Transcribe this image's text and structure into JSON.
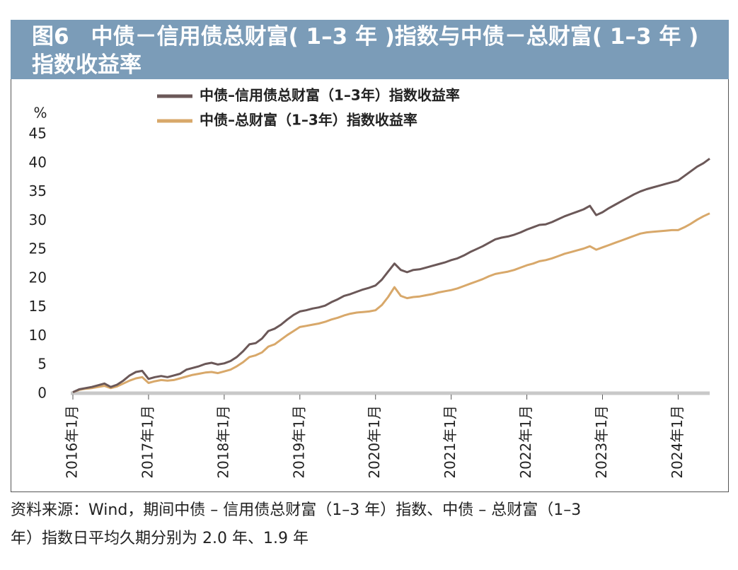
{
  "chart_data": {
    "type": "line",
    "title": "图6　中债－信用债总财富( 1–3 年 )指数与中债－总财富( 1–3 年 ) 指数收益率",
    "y_label": "%",
    "source": [
      "资料来源：Wind，期间中债 – 信用债总财富（1–3 年）指数、中债 – 总财富（1–3",
      "年）指数日平均久期分别为 2.0 年、1.9 年"
    ],
    "legend": "top",
    "grid": false,
    "ylim": [
      0,
      45
    ],
    "yticks": [
      0,
      5,
      10,
      15,
      20,
      25,
      30,
      35,
      40,
      45
    ],
    "categories": [
      "2016年1月",
      null,
      null,
      null,
      null,
      null,
      null,
      null,
      null,
      null,
      null,
      null,
      "2017年1月",
      null,
      null,
      null,
      null,
      null,
      null,
      null,
      null,
      null,
      null,
      null,
      "2018年1月",
      null,
      null,
      null,
      null,
      null,
      null,
      null,
      null,
      null,
      null,
      null,
      "2019年1月",
      null,
      null,
      null,
      null,
      null,
      null,
      null,
      null,
      null,
      null,
      null,
      "2020年1月",
      null,
      null,
      null,
      null,
      null,
      null,
      null,
      null,
      null,
      null,
      null,
      "2021年1月",
      null,
      null,
      null,
      null,
      null,
      null,
      null,
      null,
      null,
      null,
      null,
      "2022年1月",
      null,
      null,
      null,
      null,
      null,
      null,
      null,
      null,
      null,
      null,
      null,
      "2023年1月",
      null,
      null,
      null,
      null,
      null,
      null,
      null,
      null,
      null,
      null,
      null,
      "2024年1月",
      null,
      null,
      null,
      null,
      null
    ],
    "series": [
      {
        "name": "中债–信用债总财富（1–3年）指数收益率",
        "color": "#6b5858",
        "values": [
          0.3,
          0.8,
          1.0,
          1.2,
          1.5,
          1.8,
          1.2,
          1.6,
          2.3,
          3.2,
          3.8,
          4.0,
          2.6,
          2.9,
          3.1,
          2.9,
          3.2,
          3.5,
          4.2,
          4.5,
          4.8,
          5.2,
          5.4,
          5.1,
          5.3,
          5.7,
          6.4,
          7.4,
          8.6,
          8.8,
          9.6,
          10.9,
          11.3,
          12.0,
          12.9,
          13.7,
          14.3,
          14.5,
          14.8,
          15.0,
          15.3,
          15.9,
          16.4,
          17.0,
          17.3,
          17.7,
          18.1,
          18.4,
          18.8,
          19.8,
          21.2,
          22.6,
          21.5,
          21.1,
          21.5,
          21.6,
          21.9,
          22.2,
          22.5,
          22.8,
          23.2,
          23.5,
          24.0,
          24.6,
          25.1,
          25.6,
          26.2,
          26.8,
          27.1,
          27.3,
          27.6,
          28.0,
          28.5,
          28.9,
          29.3,
          29.4,
          29.8,
          30.3,
          30.8,
          31.2,
          31.6,
          32.0,
          32.6,
          31.0,
          31.5,
          32.2,
          32.8,
          33.4,
          34.0,
          34.6,
          35.1,
          35.5,
          35.8,
          36.1,
          36.4,
          36.7,
          37.0,
          37.8,
          38.6,
          39.4,
          40.0,
          40.8
        ]
      },
      {
        "name": "中债–总财富（1–3年）指数收益率",
        "color": "#d8a86a",
        "values": [
          0.3,
          0.7,
          0.9,
          1.0,
          1.2,
          1.4,
          1.0,
          1.3,
          1.8,
          2.3,
          2.7,
          2.9,
          1.9,
          2.2,
          2.4,
          2.3,
          2.4,
          2.7,
          3.0,
          3.3,
          3.5,
          3.7,
          3.8,
          3.6,
          3.9,
          4.2,
          4.8,
          5.5,
          6.4,
          6.7,
          7.2,
          8.2,
          8.6,
          9.4,
          10.2,
          10.9,
          11.6,
          11.8,
          12.0,
          12.2,
          12.5,
          12.9,
          13.2,
          13.6,
          13.9,
          14.1,
          14.2,
          14.3,
          14.5,
          15.4,
          16.8,
          18.5,
          17.0,
          16.6,
          16.8,
          16.9,
          17.1,
          17.3,
          17.6,
          17.8,
          18.0,
          18.3,
          18.7,
          19.1,
          19.5,
          19.9,
          20.4,
          20.8,
          21.0,
          21.2,
          21.5,
          21.9,
          22.3,
          22.6,
          23.0,
          23.2,
          23.5,
          23.9,
          24.3,
          24.6,
          24.9,
          25.2,
          25.6,
          25.0,
          25.4,
          25.8,
          26.2,
          26.6,
          27.0,
          27.4,
          27.8,
          28.0,
          28.1,
          28.2,
          28.3,
          28.4,
          28.4,
          28.9,
          29.5,
          30.2,
          30.8,
          31.3
        ]
      }
    ]
  }
}
